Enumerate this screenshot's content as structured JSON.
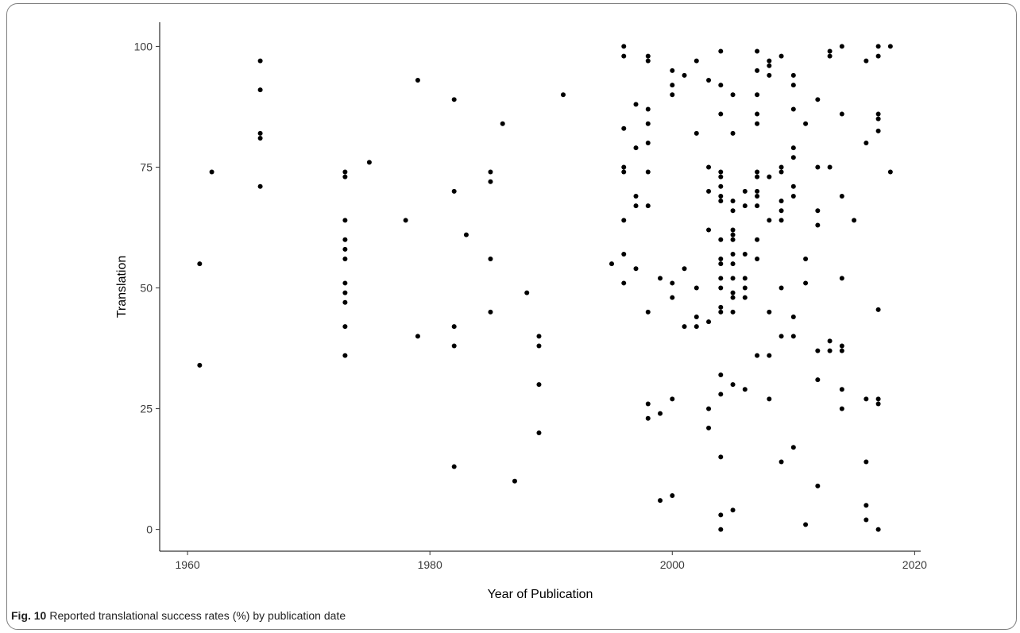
{
  "caption": {
    "label": "Fig. 10",
    "text": "Reported translational success rates (%) by publication date"
  },
  "chart_data": {
    "type": "scatter",
    "xlabel": "Year of Publication",
    "ylabel": "Translation",
    "xlim": [
      1957.7,
      2020.5
    ],
    "ylim": [
      -4.5,
      105
    ],
    "xticks": [
      1960,
      1980,
      2000,
      2020
    ],
    "yticks": [
      0,
      25,
      50,
      75,
      100
    ],
    "grid": false,
    "point_color": "#000000",
    "points": [
      [
        1961,
        55
      ],
      [
        1961,
        34
      ],
      [
        1962,
        74
      ],
      [
        1966,
        97
      ],
      [
        1966,
        91
      ],
      [
        1966,
        82
      ],
      [
        1966,
        81
      ],
      [
        1966,
        71
      ],
      [
        1973,
        74
      ],
      [
        1973,
        73
      ],
      [
        1973,
        64
      ],
      [
        1973,
        60
      ],
      [
        1973,
        58
      ],
      [
        1973,
        56
      ],
      [
        1973,
        51
      ],
      [
        1973,
        49
      ],
      [
        1973,
        47
      ],
      [
        1973,
        42
      ],
      [
        1973,
        36
      ],
      [
        1975,
        76
      ],
      [
        1978,
        64
      ],
      [
        1979,
        93
      ],
      [
        1979,
        40
      ],
      [
        1982,
        89
      ],
      [
        1982,
        70
      ],
      [
        1982,
        42
      ],
      [
        1982,
        38
      ],
      [
        1982,
        13
      ],
      [
        1983,
        61
      ],
      [
        1985,
        74
      ],
      [
        1985,
        72
      ],
      [
        1985,
        56
      ],
      [
        1985,
        45
      ],
      [
        1986,
        84
      ],
      [
        1987,
        10
      ],
      [
        1988,
        49
      ],
      [
        1989,
        40
      ],
      [
        1989,
        38
      ],
      [
        1989,
        30
      ],
      [
        1989,
        20
      ],
      [
        1991,
        90
      ],
      [
        1995,
        55
      ],
      [
        1996,
        100
      ],
      [
        1996,
        98
      ],
      [
        1996,
        83
      ],
      [
        1996,
        75
      ],
      [
        1996,
        74
      ],
      [
        1996,
        64
      ],
      [
        1996,
        57
      ],
      [
        1996,
        51
      ],
      [
        1997,
        88
      ],
      [
        1997,
        79
      ],
      [
        1997,
        69
      ],
      [
        1997,
        67
      ],
      [
        1997,
        54
      ],
      [
        1998,
        98
      ],
      [
        1998,
        97
      ],
      [
        1998,
        87
      ],
      [
        1998,
        84
      ],
      [
        1998,
        80
      ],
      [
        1998,
        74
      ],
      [
        1998,
        67
      ],
      [
        1998,
        45
      ],
      [
        1998,
        26
      ],
      [
        1998,
        23
      ],
      [
        1999,
        52
      ],
      [
        1999,
        24
      ],
      [
        1999,
        6
      ],
      [
        2000,
        95
      ],
      [
        2000,
        92
      ],
      [
        2000,
        90
      ],
      [
        2000,
        51
      ],
      [
        2000,
        48
      ],
      [
        2000,
        27
      ],
      [
        2000,
        7
      ],
      [
        2001,
        94
      ],
      [
        2001,
        54
      ],
      [
        2001,
        42
      ],
      [
        2002,
        97
      ],
      [
        2002,
        82
      ],
      [
        2002,
        50
      ],
      [
        2002,
        44
      ],
      [
        2002,
        42
      ],
      [
        2003,
        93
      ],
      [
        2003,
        75
      ],
      [
        2003,
        70
      ],
      [
        2003,
        62
      ],
      [
        2003,
        43
      ],
      [
        2003,
        25
      ],
      [
        2003,
        21
      ],
      [
        2004,
        99
      ],
      [
        2004,
        92
      ],
      [
        2004,
        86
      ],
      [
        2004,
        74
      ],
      [
        2004,
        73
      ],
      [
        2004,
        71
      ],
      [
        2004,
        69
      ],
      [
        2004,
        68
      ],
      [
        2004,
        60
      ],
      [
        2004,
        56
      ],
      [
        2004,
        55
      ],
      [
        2004,
        52
      ],
      [
        2004,
        50
      ],
      [
        2004,
        46
      ],
      [
        2004,
        45
      ],
      [
        2004,
        32
      ],
      [
        2004,
        28
      ],
      [
        2004,
        15
      ],
      [
        2004,
        3
      ],
      [
        2004,
        0
      ],
      [
        2005,
        90
      ],
      [
        2005,
        82
      ],
      [
        2005,
        68
      ],
      [
        2005,
        66
      ],
      [
        2005,
        62
      ],
      [
        2005,
        61
      ],
      [
        2005,
        60
      ],
      [
        2005,
        57
      ],
      [
        2005,
        55
      ],
      [
        2005,
        52
      ],
      [
        2005,
        49
      ],
      [
        2005,
        48
      ],
      [
        2005,
        45
      ],
      [
        2005,
        30
      ],
      [
        2005,
        4
      ],
      [
        2006,
        70
      ],
      [
        2006,
        67
      ],
      [
        2006,
        57
      ],
      [
        2006,
        52
      ],
      [
        2006,
        50
      ],
      [
        2006,
        48
      ],
      [
        2006,
        29
      ],
      [
        2007,
        99
      ],
      [
        2007,
        95
      ],
      [
        2007,
        90
      ],
      [
        2007,
        86
      ],
      [
        2007,
        84
      ],
      [
        2007,
        74
      ],
      [
        2007,
        73
      ],
      [
        2007,
        70
      ],
      [
        2007,
        69
      ],
      [
        2007,
        67
      ],
      [
        2007,
        60
      ],
      [
        2007,
        56
      ],
      [
        2007,
        36
      ],
      [
        2008,
        97
      ],
      [
        2008,
        96
      ],
      [
        2008,
        94
      ],
      [
        2008,
        73
      ],
      [
        2008,
        64
      ],
      [
        2008,
        45
      ],
      [
        2008,
        36
      ],
      [
        2008,
        27
      ],
      [
        2009,
        98
      ],
      [
        2009,
        75
      ],
      [
        2009,
        74
      ],
      [
        2009,
        68
      ],
      [
        2009,
        66
      ],
      [
        2009,
        64
      ],
      [
        2009,
        50
      ],
      [
        2009,
        40
      ],
      [
        2009,
        14
      ],
      [
        2010,
        94
      ],
      [
        2010,
        92
      ],
      [
        2010,
        87
      ],
      [
        2010,
        79
      ],
      [
        2010,
        77
      ],
      [
        2010,
        71
      ],
      [
        2010,
        69
      ],
      [
        2010,
        44
      ],
      [
        2010,
        40
      ],
      [
        2010,
        17
      ],
      [
        2011,
        84
      ],
      [
        2011,
        56
      ],
      [
        2011,
        51
      ],
      [
        2011,
        1
      ],
      [
        2012,
        89
      ],
      [
        2012,
        75
      ],
      [
        2012,
        66
      ],
      [
        2012,
        63
      ],
      [
        2012,
        37
      ],
      [
        2012,
        31
      ],
      [
        2012,
        9
      ],
      [
        2013,
        99
      ],
      [
        2013,
        98
      ],
      [
        2013,
        75
      ],
      [
        2013,
        39
      ],
      [
        2013,
        37
      ],
      [
        2014,
        100
      ],
      [
        2014,
        86
      ],
      [
        2014,
        69
      ],
      [
        2014,
        52
      ],
      [
        2014,
        38
      ],
      [
        2014,
        37
      ],
      [
        2014,
        29
      ],
      [
        2014,
        25
      ],
      [
        2015,
        64
      ],
      [
        2016,
        97
      ],
      [
        2016,
        80
      ],
      [
        2016,
        27
      ],
      [
        2016,
        14
      ],
      [
        2016,
        5
      ],
      [
        2016,
        2
      ],
      [
        2017,
        100
      ],
      [
        2017,
        98
      ],
      [
        2017,
        86
      ],
      [
        2017,
        85
      ],
      [
        2017,
        82.5
      ],
      [
        2017,
        45.5
      ],
      [
        2017,
        27
      ],
      [
        2017,
        26
      ],
      [
        2017,
        0
      ],
      [
        2018,
        100
      ],
      [
        2018,
        74
      ]
    ]
  }
}
